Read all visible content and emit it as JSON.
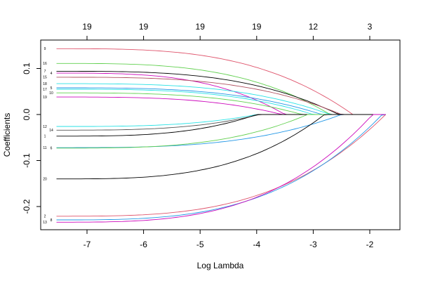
{
  "chart_data": {
    "type": "line",
    "xlabel": "Log Lambda",
    "ylabel": "Coefficients",
    "xlim": [
      -7.65,
      -1.55
    ],
    "ylim": [
      -0.255,
      0.16
    ],
    "x_ticks": [
      "-7",
      "-6",
      "-5",
      "-4",
      "-3",
      "-2"
    ],
    "x_tick_values": [
      -7,
      -6,
      -5,
      -4,
      -3,
      -2
    ],
    "y_ticks": [
      "-0.2",
      "-0.1",
      "0.0",
      "0.1"
    ],
    "y_tick_values": [
      -0.2,
      -0.1,
      0,
      0.1
    ],
    "top_axis_ticks": [
      "19",
      "19",
      "19",
      "19",
      "12",
      "3"
    ],
    "grid": false,
    "min_log_lambda": -7.54,
    "max_log_lambda": -1.72,
    "series": [
      {
        "name": "9",
        "coef_at_min": 0.143,
        "zero_log_lambda": -2.3,
        "color": "#DF536B"
      },
      {
        "name": "16",
        "coef_at_min": 0.111,
        "zero_log_lambda": -2.7,
        "color": "#61D04F"
      },
      {
        "name": "7",
        "coef_at_min": 0.094,
        "zero_log_lambda": -2.55,
        "color": "#000000"
      },
      {
        "name": "4",
        "coef_at_min": 0.09,
        "zero_log_lambda": -3.5,
        "color": "#CD0BBC"
      },
      {
        "name": "15",
        "coef_at_min": 0.081,
        "zero_log_lambda": -2.5,
        "color": "#B05060"
      },
      {
        "name": "18",
        "coef_at_min": 0.067,
        "zero_log_lambda": -2.7,
        "color": "#28E2E5"
      },
      {
        "name": "5",
        "coef_at_min": 0.058,
        "zero_log_lambda": -2.85,
        "color": "#2297E6"
      },
      {
        "name": "17",
        "coef_at_min": 0.055,
        "zero_log_lambda": -3.0,
        "color": "#28E2E5"
      },
      {
        "name": "10",
        "coef_at_min": 0.047,
        "zero_log_lambda": -3.2,
        "color": "#61D04F"
      },
      {
        "name": "19",
        "coef_at_min": 0.038,
        "zero_log_lambda": -3.55,
        "color": "#CD0BBC"
      },
      {
        "name": "12",
        "coef_at_min": -0.026,
        "zero_log_lambda": -4.0,
        "color": "#28E2E5"
      },
      {
        "name": "14",
        "coef_at_min": -0.034,
        "zero_log_lambda": -3.95,
        "color": "#555555"
      },
      {
        "name": "1",
        "coef_at_min": -0.047,
        "zero_log_lambda": -4.0,
        "color": "#000000"
      },
      {
        "name": "11",
        "coef_at_min": -0.072,
        "zero_log_lambda": -2.5,
        "color": "#2297E6"
      },
      {
        "name": "6",
        "coef_at_min": -0.073,
        "zero_log_lambda": -3.1,
        "color": "#61D04F"
      },
      {
        "name": "20",
        "coef_at_min": -0.14,
        "zero_log_lambda": -2.8,
        "color": "#000000"
      },
      {
        "name": "2",
        "coef_at_min": -0.221,
        "zero_log_lambda": -1.72,
        "color": "#DF536B"
      },
      {
        "name": "8",
        "coef_at_min": -0.229,
        "zero_log_lambda": -1.78,
        "color": "#2297E6"
      },
      {
        "name": "13",
        "coef_at_min": -0.234,
        "zero_log_lambda": -1.95,
        "color": "#CD0BBC"
      }
    ]
  }
}
